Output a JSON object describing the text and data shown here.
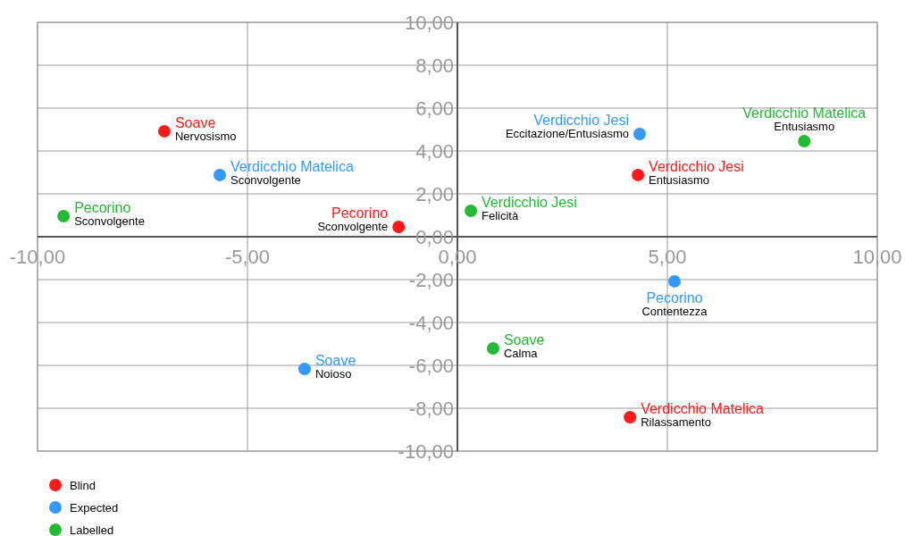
{
  "chart_data": {
    "type": "scatter",
    "marker": "circle",
    "grid": true,
    "legend": "bottom left",
    "xlim": [
      -10,
      10
    ],
    "ylim": [
      -10,
      10
    ],
    "xticks": [
      {
        "value": -10,
        "label": "-10,00"
      },
      {
        "value": -5,
        "label": "-5,00"
      },
      {
        "value": 0,
        "label": "0,00"
      },
      {
        "value": 5,
        "label": "5,00"
      },
      {
        "value": 10,
        "label": "10,00"
      }
    ],
    "yticks": [
      {
        "value": -10,
        "label": "-10,00"
      },
      {
        "value": -8,
        "label": "-8,00"
      },
      {
        "value": -6,
        "label": "-6,00"
      },
      {
        "value": -4,
        "label": "-4,00"
      },
      {
        "value": -2,
        "label": "-2,00"
      },
      {
        "value": 0,
        "label": "0,00"
      },
      {
        "value": 2,
        "label": "2,00"
      },
      {
        "value": 4,
        "label": "4,00"
      },
      {
        "value": 6,
        "label": "6,00"
      },
      {
        "value": 8,
        "label": "8,00"
      },
      {
        "value": 10,
        "label": "10,00"
      }
    ],
    "series": [
      {
        "name": "Blind",
        "color": "#ff1a1a",
        "x": [
          -6.98,
          -1.4,
          4.3,
          4.11
        ],
        "values": [
          4.92,
          0.46,
          2.88,
          -8.42
        ]
      },
      {
        "name": "Expected",
        "color": "#3399ff",
        "x": [
          -5.66,
          4.34,
          5.17,
          -3.64
        ],
        "values": [
          2.88,
          4.79,
          -2.08,
          -6.17
        ]
      },
      {
        "name": "Labelled",
        "color": "#22bb33",
        "x": [
          -9.38,
          0.32,
          8.26,
          0.85
        ],
        "values": [
          0.96,
          1.21,
          4.46,
          -5.21
        ]
      }
    ],
    "annotations": [
      {
        "text": "Soave",
        "x": -6.98,
        "y": 4.92
      },
      {
        "text": "Nervosismo",
        "x": -6.98,
        "y": 4.92
      },
      {
        "text": "Pecorino",
        "x": -1.4,
        "y": 0.46
      },
      {
        "text": "Sconvolgente",
        "x": -1.4,
        "y": 0.46
      },
      {
        "text": "Verdicchio Jesi",
        "x": 4.3,
        "y": 2.88
      },
      {
        "text": "Entusiasmo",
        "x": 4.3,
        "y": 2.88
      },
      {
        "text": "Verdicchio Matelica",
        "x": 4.11,
        "y": -8.42
      },
      {
        "text": "Rilassamento",
        "x": 4.11,
        "y": -8.42
      },
      {
        "text": "Verdicchio Matelica",
        "x": -5.66,
        "y": 2.88
      },
      {
        "text": "Sconvolgente",
        "x": -5.66,
        "y": 2.88
      },
      {
        "text": "Verdicchio Jesi",
        "x": 4.34,
        "y": 4.79
      },
      {
        "text": "Eccitazione/Entusiasmo",
        "x": 4.34,
        "y": 4.79
      },
      {
        "text": "Pecorino",
        "x": 5.17,
        "y": -2.08
      },
      {
        "text": "Contentezza",
        "x": 5.17,
        "y": -2.08
      },
      {
        "text": "Soave",
        "x": -3.64,
        "y": -6.17
      },
      {
        "text": "Noioso",
        "x": -3.64,
        "y": -6.17
      },
      {
        "text": "Pecorino",
        "x": -9.38,
        "y": 0.96
      },
      {
        "text": "Sconvolgente",
        "x": -9.38,
        "y": 0.96
      },
      {
        "text": "Verdicchio Jesi",
        "x": 0.32,
        "y": 1.21
      },
      {
        "text": "Felicità",
        "x": 0.32,
        "y": 1.21
      },
      {
        "text": "Verdicchio Matelica",
        "x": 8.26,
        "y": 4.46
      },
      {
        "text": "Entusiasmo",
        "x": 8.26,
        "y": 4.46
      },
      {
        "text": "Soave",
        "x": 0.85,
        "y": -5.21
      },
      {
        "text": "Calma",
        "x": 0.85,
        "y": -5.21
      }
    ]
  }
}
